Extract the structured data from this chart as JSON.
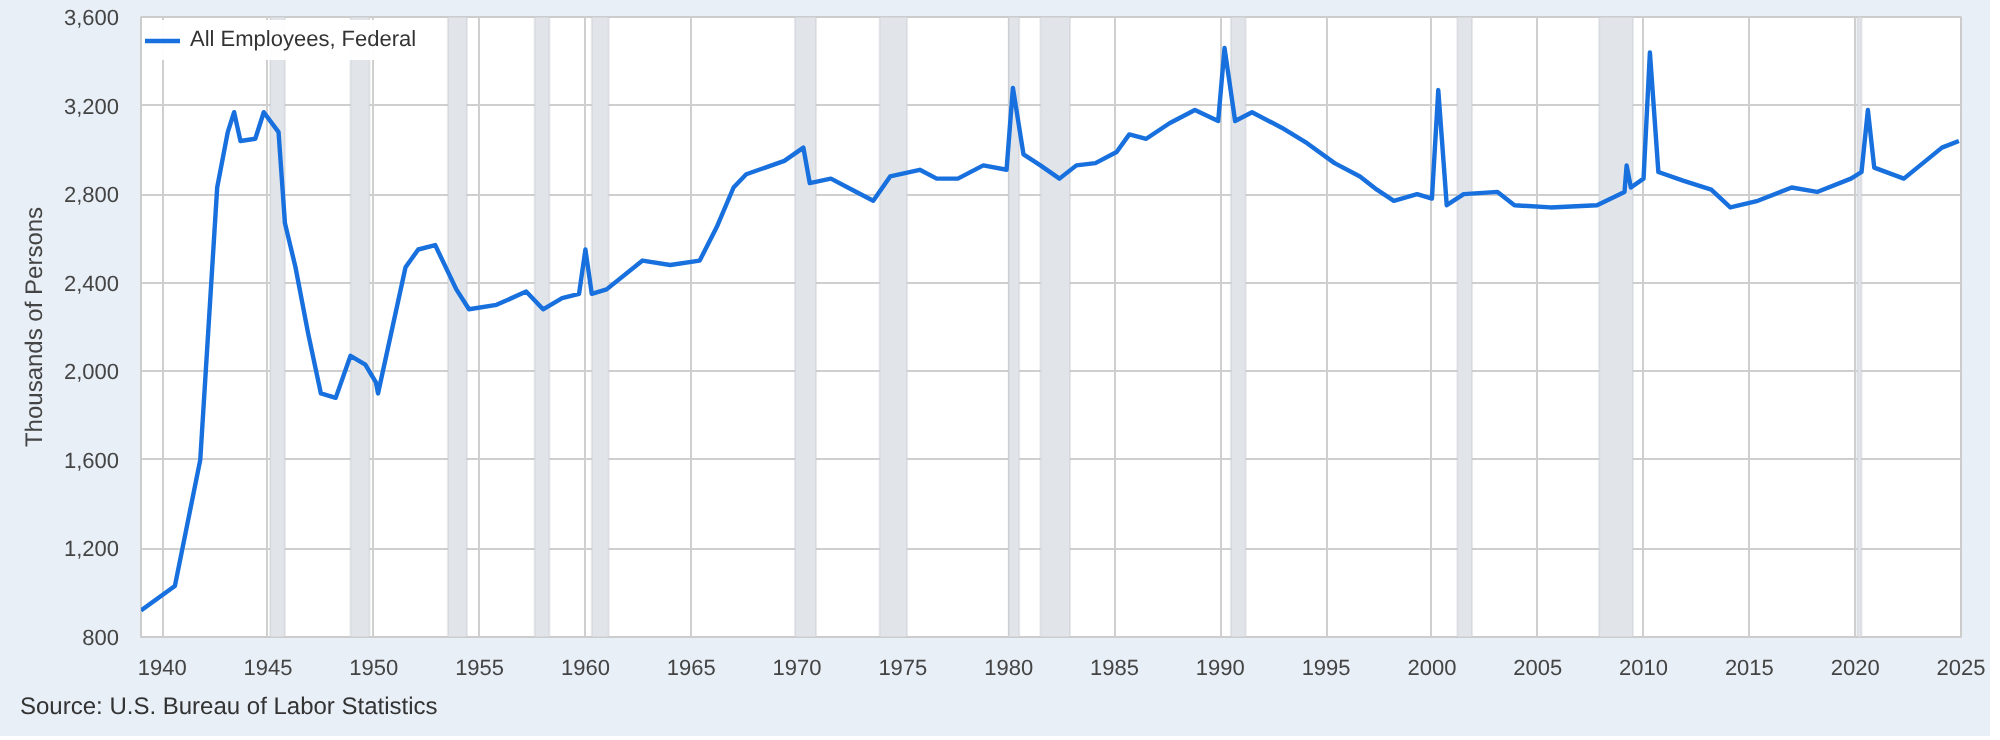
{
  "chart_data": {
    "type": "line",
    "ylabel": "Thousands of Persons",
    "legend": "top left",
    "grid": true,
    "marker": "none",
    "line_style": "solid",
    "xlim": [
      1939,
      2025
    ],
    "ylim": [
      800,
      3600
    ],
    "xticks": [
      1940,
      1945,
      1950,
      1955,
      1960,
      1965,
      1970,
      1975,
      1980,
      1985,
      1990,
      1995,
      2000,
      2005,
      2010,
      2015,
      2020,
      2025
    ],
    "yticks": [
      800,
      {
        "value": 1200,
        "label": "1,200"
      },
      {
        "value": 1600,
        "label": "1,600"
      },
      {
        "value": 2000,
        "label": "2,000"
      },
      {
        "value": 2400,
        "label": "2,400"
      },
      {
        "value": 2800,
        "label": "2,800"
      },
      {
        "value": 3200,
        "label": "3,200"
      },
      {
        "value": 3600,
        "label": "3,600"
      }
    ],
    "annotations": [
      "Source: U.S. Bureau of Labor Statistics"
    ],
    "bands": [
      {
        "axis": "x",
        "from": 1945.1,
        "to": 1945.8,
        "color": "#e1e5ea"
      },
      {
        "axis": "x",
        "from": 1948.9,
        "to": 1949.8,
        "color": "#e1e5ea"
      },
      {
        "axis": "x",
        "from": 1953.5,
        "to": 1954.4,
        "color": "#e1e5ea"
      },
      {
        "axis": "x",
        "from": 1957.6,
        "to": 1958.3,
        "color": "#e1e5ea"
      },
      {
        "axis": "x",
        "from": 1960.3,
        "to": 1961.1,
        "color": "#e1e5ea"
      },
      {
        "axis": "x",
        "from": 1969.9,
        "to": 1970.9,
        "color": "#e1e5ea"
      },
      {
        "axis": "x",
        "from": 1973.9,
        "to": 1975.2,
        "color": "#e1e5ea"
      },
      {
        "axis": "x",
        "from": 1980.0,
        "to": 1980.5,
        "color": "#e1e5ea"
      },
      {
        "axis": "x",
        "from": 1981.5,
        "to": 1982.9,
        "color": "#e1e5ea"
      },
      {
        "axis": "x",
        "from": 1990.5,
        "to": 1991.2,
        "color": "#e1e5ea"
      },
      {
        "axis": "x",
        "from": 2001.2,
        "to": 2001.9,
        "color": "#e1e5ea"
      },
      {
        "axis": "x",
        "from": 2007.9,
        "to": 2009.5,
        "color": "#e1e5ea"
      },
      {
        "axis": "x",
        "from": 2020.1,
        "to": 2020.3,
        "color": "#e1e5ea"
      }
    ],
    "series": [
      {
        "name": "All Employees, Federal",
        "color": "#1770dd",
        "x": [
          1939.0,
          1940.6,
          1941.8,
          1942.6,
          1943.1,
          1943.4,
          1943.7,
          1944.4,
          1944.8,
          1945.5,
          1945.8,
          1946.3,
          1946.9,
          1947.5,
          1948.2,
          1948.9,
          1949.6,
          1950.1,
          1950.2,
          1951.5,
          1952.1,
          1952.9,
          1953.9,
          1954.5,
          1955.8,
          1957.2,
          1958.0,
          1958.9,
          1959.7,
          1960.0,
          1960.3,
          1961.0,
          1962.7,
          1964.0,
          1965.4,
          1966.2,
          1967.0,
          1967.6,
          1968.5,
          1969.4,
          1970.3,
          1970.6,
          1971.6,
          1972.6,
          1973.6,
          1974.4,
          1975.8,
          1976.6,
          1977.6,
          1978.8,
          1979.9,
          1980.2,
          1980.7,
          1981.5,
          1982.4,
          1983.2,
          1984.1,
          1985.1,
          1985.7,
          1986.5,
          1987.6,
          1988.8,
          1989.9,
          1990.2,
          1990.7,
          1991.5,
          1992.9,
          1994.1,
          1995.4,
          1996.6,
          1997.4,
          1998.2,
          1999.3,
          2000.0,
          2000.3,
          2000.7,
          2001.5,
          2003.1,
          2003.9,
          2005.6,
          2007.8,
          2009.1,
          2009.2,
          2009.4,
          2010.0,
          2010.3,
          2010.7,
          2011.9,
          2013.2,
          2014.1,
          2015.4,
          2017.0,
          2018.2,
          2019.8,
          2020.3,
          2020.6,
          2020.9,
          2022.3,
          2024.1,
          2024.9
        ],
        "values": [
          920,
          1030,
          1600,
          2830,
          3080,
          3170,
          3040,
          3050,
          3170,
          3080,
          2670,
          2470,
          2170,
          1900,
          1880,
          2070,
          2030,
          1950,
          1900,
          2470,
          2550,
          2570,
          2370,
          2280,
          2300,
          2360,
          2280,
          2330,
          2350,
          2550,
          2350,
          2370,
          2500,
          2480,
          2500,
          2650,
          2830,
          2890,
          2920,
          2950,
          3010,
          2850,
          2870,
          2820,
          2770,
          2880,
          2910,
          2870,
          2870,
          2930,
          2910,
          3280,
          2980,
          2930,
          2870,
          2930,
          2940,
          2990,
          3070,
          3050,
          3120,
          3180,
          3130,
          3460,
          3130,
          3170,
          3100,
          3030,
          2940,
          2880,
          2820,
          2770,
          2800,
          2780,
          3270,
          2750,
          2800,
          2810,
          2750,
          2740,
          2750,
          2810,
          2930,
          2830,
          2870,
          3440,
          2900,
          2860,
          2820,
          2740,
          2770,
          2830,
          2810,
          2870,
          2900,
          3180,
          2920,
          2870,
          3010,
          3040
        ]
      }
    ]
  }
}
